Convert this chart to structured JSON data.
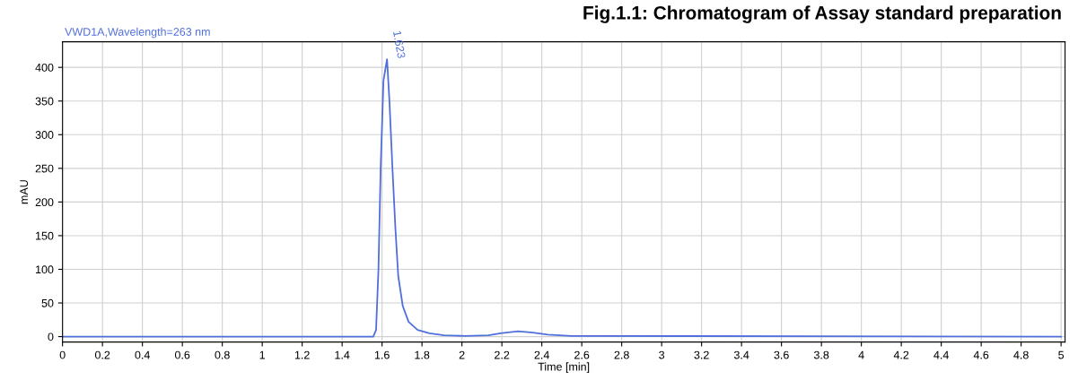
{
  "chart_data": {
    "type": "line",
    "title": "Fig.1.1: Chromatogram of Assay standard preparation",
    "subtitle": "VWD1A,Wavelength=263 nm",
    "xlabel": "Time [min]",
    "ylabel": "mAU",
    "x": [
      0,
      1.556,
      1.57,
      1.582,
      1.593,
      1.607,
      1.625,
      1.637,
      1.652,
      1.667,
      1.681,
      1.704,
      1.733,
      1.778,
      1.837,
      1.911,
      2.015,
      2.133,
      2.193,
      2.281,
      2.356,
      2.43,
      2.548,
      5
    ],
    "series": [
      {
        "color": "#4f6fdc",
        "values": [
          0,
          0,
          10,
          100,
          250,
          380,
          412,
          350,
          250,
          160,
          90,
          45,
          22,
          10,
          5,
          2,
          1,
          2,
          5,
          8,
          6,
          3,
          1,
          0
        ]
      }
    ],
    "annotations": [
      {
        "text": "1.623",
        "x": 1.625,
        "y": 412
      }
    ],
    "xlim": [
      0,
      5.02
    ],
    "ylim": [
      -8,
      438
    ],
    "xticks": [
      0,
      0.2,
      0.4,
      0.6,
      0.8,
      1,
      1.2,
      1.4,
      1.6,
      1.8,
      2,
      2.2,
      2.4,
      2.6,
      2.8,
      3,
      3.2,
      3.4,
      3.6,
      3.8,
      4,
      4.2,
      4.4,
      4.6,
      4.8,
      5
    ],
    "yticks": [
      0,
      50,
      100,
      150,
      200,
      250,
      300,
      350,
      400
    ],
    "grid": true,
    "marker": "none",
    "line_style": "solid",
    "legend": false
  }
}
